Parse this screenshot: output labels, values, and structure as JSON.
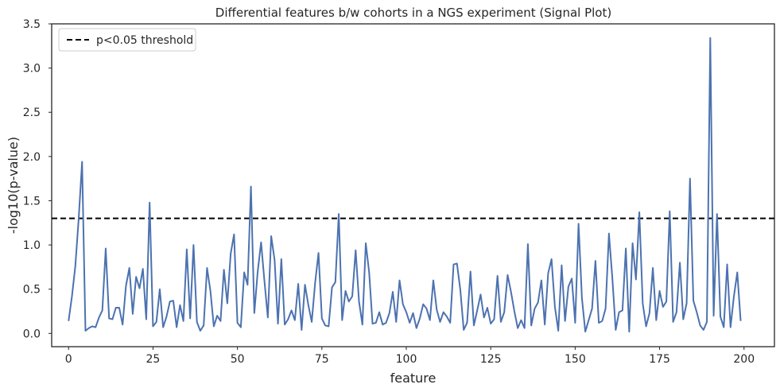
{
  "chart_data": {
    "type": "line",
    "title": "Differential features b/w cohorts in a NGS experiment (Signal Plot)",
    "xlabel": "feature",
    "ylabel": "-log10(p-value)",
    "xlim": [
      -5,
      209
    ],
    "ylim": [
      -0.15,
      3.5
    ],
    "xticks": [
      0,
      25,
      50,
      75,
      100,
      125,
      150,
      175,
      200
    ],
    "yticks": [
      0.0,
      0.5,
      1.0,
      1.5,
      2.0,
      2.5,
      3.0,
      3.5
    ],
    "xtick_labels": [
      "0",
      "25",
      "50",
      "75",
      "100",
      "125",
      "150",
      "175",
      "200"
    ],
    "ytick_labels": [
      "0.0",
      "0.5",
      "1.0",
      "1.5",
      "2.0",
      "2.5",
      "3.0",
      "3.5"
    ],
    "grid": false,
    "legend_position": "top-left",
    "series": [
      {
        "color": "#4c72b0",
        "x": [
          0,
          1,
          2,
          3,
          4,
          5,
          6,
          7,
          8,
          9,
          10,
          11,
          12,
          13,
          14,
          15,
          16,
          17,
          18,
          19,
          20,
          21,
          22,
          23,
          24,
          25,
          26,
          27,
          28,
          29,
          30,
          31,
          32,
          33,
          34,
          35,
          36,
          37,
          38,
          39,
          40,
          41,
          42,
          43,
          44,
          45,
          46,
          47,
          48,
          49,
          50,
          51,
          52,
          53,
          54,
          55,
          56,
          57,
          58,
          59,
          60,
          61,
          62,
          63,
          64,
          65,
          66,
          67,
          68,
          69,
          70,
          71,
          72,
          73,
          74,
          75,
          76,
          77,
          78,
          79,
          80,
          81,
          82,
          83,
          84,
          85,
          86,
          87,
          88,
          89,
          90,
          91,
          92,
          93,
          94,
          95,
          96,
          97,
          98,
          99,
          100,
          101,
          102,
          103,
          104,
          105,
          106,
          107,
          108,
          109,
          110,
          111,
          112,
          113,
          114,
          115,
          116,
          117,
          118,
          119,
          120,
          121,
          122,
          123,
          124,
          125,
          126,
          127,
          128,
          129,
          130,
          131,
          132,
          133,
          134,
          135,
          136,
          137,
          138,
          139,
          140,
          141,
          142,
          143,
          144,
          145,
          146,
          147,
          148,
          149,
          150,
          151,
          152,
          153,
          154,
          155,
          156,
          157,
          158,
          159,
          160,
          161,
          162,
          163,
          164,
          165,
          166,
          167,
          168,
          169,
          170,
          171,
          172,
          173,
          174,
          175,
          176,
          177,
          178,
          179,
          180,
          181,
          182,
          183,
          184,
          185,
          186,
          187,
          188,
          189,
          190,
          191,
          192,
          193,
          194,
          195,
          196,
          197,
          198,
          199
        ],
        "y": [
          0.14,
          0.42,
          0.76,
          1.3,
          1.94,
          0.03,
          0.06,
          0.08,
          0.07,
          0.18,
          0.26,
          0.96,
          0.17,
          0.16,
          0.29,
          0.29,
          0.1,
          0.54,
          0.74,
          0.22,
          0.64,
          0.51,
          0.73,
          0.16,
          1.48,
          0.08,
          0.13,
          0.5,
          0.07,
          0.19,
          0.36,
          0.37,
          0.07,
          0.32,
          0.14,
          0.95,
          0.17,
          1.0,
          0.13,
          0.03,
          0.09,
          0.74,
          0.48,
          0.08,
          0.2,
          0.14,
          0.72,
          0.34,
          0.9,
          1.12,
          0.12,
          0.07,
          0.69,
          0.55,
          1.66,
          0.23,
          0.7,
          1.03,
          0.59,
          0.18,
          1.1,
          0.83,
          0.11,
          0.84,
          0.1,
          0.16,
          0.26,
          0.15,
          0.56,
          0.04,
          0.55,
          0.32,
          0.13,
          0.57,
          0.91,
          0.17,
          0.09,
          0.08,
          0.52,
          0.58,
          1.35,
          0.15,
          0.48,
          0.36,
          0.42,
          0.94,
          0.36,
          0.1,
          1.02,
          0.69,
          0.11,
          0.12,
          0.24,
          0.1,
          0.12,
          0.23,
          0.47,
          0.13,
          0.6,
          0.33,
          0.24,
          0.12,
          0.23,
          0.06,
          0.17,
          0.33,
          0.28,
          0.15,
          0.6,
          0.27,
          0.13,
          0.24,
          0.19,
          0.12,
          0.78,
          0.79,
          0.49,
          0.04,
          0.12,
          0.7,
          0.09,
          0.26,
          0.44,
          0.18,
          0.29,
          0.11,
          0.16,
          0.65,
          0.13,
          0.24,
          0.66,
          0.47,
          0.25,
          0.06,
          0.15,
          0.06,
          1.01,
          0.09,
          0.28,
          0.35,
          0.6,
          0.1,
          0.68,
          0.84,
          0.3,
          0.03,
          0.77,
          0.14,
          0.53,
          0.62,
          0.12,
          1.24,
          0.4,
          0.02,
          0.15,
          0.28,
          0.82,
          0.12,
          0.14,
          0.28,
          1.13,
          0.63,
          0.04,
          0.24,
          0.26,
          0.96,
          0.02,
          1.02,
          0.61,
          1.37,
          0.34,
          0.08,
          0.23,
          0.74,
          0.15,
          0.48,
          0.3,
          0.36,
          1.38,
          0.13,
          0.24,
          0.8,
          0.16,
          0.34,
          1.75,
          0.37,
          0.24,
          0.09,
          0.04,
          0.13,
          3.34,
          0.2,
          1.35,
          0.19,
          0.07,
          0.78,
          0.07,
          0.42,
          0.69,
          0.14
        ]
      }
    ],
    "threshold": {
      "value": 1.301,
      "label": "p<0.05 threshold",
      "color": "#000000",
      "style": "dashed"
    }
  }
}
